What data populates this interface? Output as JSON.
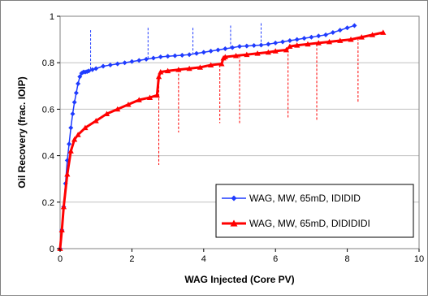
{
  "chart_data": {
    "type": "line",
    "title": "",
    "xlabel": "WAG Injected (Core PV)",
    "ylabel": "Oil Recovery (frac. IOIP)",
    "xlim": [
      0,
      10
    ],
    "ylim": [
      0,
      1
    ],
    "xticks": [
      "0",
      "2",
      "4",
      "6",
      "8",
      "10"
    ],
    "yticks": [
      "0",
      "0.2",
      "0.4",
      "0.6",
      "0.8",
      "1"
    ],
    "grid": {
      "horizontal": true,
      "vertical": false
    },
    "legend": "bottom-right",
    "colors": {
      "series1": "#1f3bff",
      "series2": "#ff0000",
      "grid": "#c0c0c0"
    },
    "series": [
      {
        "name": "WAG, MW, 65mD, IDIDID",
        "marker": "diamond",
        "color": "#1f3bff",
        "x": [
          0.0,
          0.05,
          0.1,
          0.15,
          0.2,
          0.25,
          0.3,
          0.35,
          0.4,
          0.45,
          0.5,
          0.55,
          0.6,
          0.65,
          0.7,
          0.75,
          0.8,
          0.9,
          1.0,
          1.2,
          1.4,
          1.6,
          1.8,
          2.0,
          2.2,
          2.4,
          2.6,
          2.8,
          3.0,
          3.2,
          3.4,
          3.6,
          3.8,
          4.0,
          4.2,
          4.4,
          4.6,
          4.8,
          5.0,
          5.2,
          5.4,
          5.6,
          5.8,
          6.0,
          6.2,
          6.4,
          6.6,
          6.8,
          7.0,
          7.2,
          7.4,
          7.6,
          7.8,
          8.0,
          8.2
        ],
        "y": [
          0.0,
          0.08,
          0.18,
          0.28,
          0.38,
          0.45,
          0.52,
          0.58,
          0.63,
          0.67,
          0.71,
          0.74,
          0.755,
          0.76,
          0.76,
          0.762,
          0.765,
          0.77,
          0.775,
          0.785,
          0.79,
          0.795,
          0.8,
          0.805,
          0.81,
          0.815,
          0.82,
          0.825,
          0.828,
          0.83,
          0.832,
          0.835,
          0.84,
          0.845,
          0.85,
          0.855,
          0.86,
          0.865,
          0.87,
          0.872,
          0.874,
          0.876,
          0.88,
          0.885,
          0.89,
          0.895,
          0.9,
          0.905,
          0.91,
          0.915,
          0.92,
          0.93,
          0.94,
          0.95,
          0.96
        ]
      },
      {
        "name": "WAG, MW, 65mD, DIDIDIDI",
        "marker": "triangle",
        "color": "#ff0000",
        "x": [
          0.0,
          0.05,
          0.1,
          0.2,
          0.3,
          0.4,
          0.5,
          0.7,
          1.0,
          1.3,
          1.6,
          1.9,
          2.2,
          2.5,
          2.7,
          2.75,
          2.8,
          3.0,
          3.3,
          3.6,
          3.9,
          4.2,
          4.5,
          4.55,
          4.6,
          4.9,
          5.2,
          5.5,
          5.8,
          6.0,
          6.3,
          6.4,
          6.6,
          6.9,
          7.2,
          7.5,
          7.8,
          8.1,
          8.4,
          8.7,
          9.0
        ],
        "y": [
          0.0,
          0.08,
          0.18,
          0.32,
          0.42,
          0.47,
          0.49,
          0.52,
          0.55,
          0.58,
          0.6,
          0.62,
          0.64,
          0.65,
          0.66,
          0.74,
          0.76,
          0.765,
          0.77,
          0.775,
          0.78,
          0.79,
          0.795,
          0.82,
          0.825,
          0.83,
          0.835,
          0.84,
          0.845,
          0.85,
          0.855,
          0.87,
          0.875,
          0.88,
          0.885,
          0.89,
          0.895,
          0.9,
          0.91,
          0.92,
          0.93
        ]
      }
    ],
    "dashed_markers": {
      "blue": [
        {
          "x": 0.85,
          "y_top": 0.94,
          "y_bottom": 0.77
        },
        {
          "x": 2.45,
          "y_top": 0.95,
          "y_bottom": 0.815
        },
        {
          "x": 3.7,
          "y_top": 0.95,
          "y_bottom": 0.84
        },
        {
          "x": 4.75,
          "y_top": 0.96,
          "y_bottom": 0.86
        },
        {
          "x": 5.6,
          "y_top": 0.97,
          "y_bottom": 0.875
        }
      ],
      "red": [
        {
          "x": 2.75,
          "y_top": 0.7,
          "y_bottom": 0.36
        },
        {
          "x": 3.3,
          "y_top": 0.77,
          "y_bottom": 0.5
        },
        {
          "x": 4.45,
          "y_top": 0.79,
          "y_bottom": 0.54
        },
        {
          "x": 5.0,
          "y_top": 0.83,
          "y_bottom": 0.54
        },
        {
          "x": 6.35,
          "y_top": 0.855,
          "y_bottom": 0.56
        },
        {
          "x": 7.15,
          "y_top": 0.88,
          "y_bottom": 0.55
        },
        {
          "x": 8.3,
          "y_top": 0.905,
          "y_bottom": 0.63
        }
      ]
    }
  }
}
